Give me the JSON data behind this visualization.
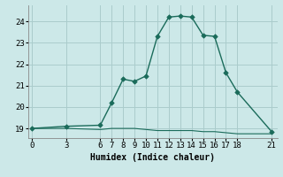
{
  "xlabel": "Humidex (Indice chaleur)",
  "background_color": "#cce8e8",
  "grid_color": "#aacccc",
  "line_color": "#1a6b5a",
  "marker_color": "#1a6b5a",
  "line_x": [
    0,
    3,
    6,
    7,
    8,
    9,
    10,
    11,
    12,
    13,
    14,
    15,
    16,
    17,
    18,
    21
  ],
  "line_y": [
    19.0,
    19.1,
    19.15,
    20.2,
    21.3,
    21.2,
    21.45,
    23.3,
    24.2,
    24.25,
    24.2,
    23.35,
    23.3,
    21.6,
    20.7,
    18.85
  ],
  "flat_x": [
    0,
    3,
    6,
    7,
    8,
    9,
    10,
    11,
    12,
    13,
    14,
    15,
    16,
    17,
    18,
    21
  ],
  "flat_y": [
    19.0,
    19.0,
    18.95,
    19.0,
    19.0,
    19.0,
    18.95,
    18.9,
    18.9,
    18.9,
    18.9,
    18.85,
    18.85,
    18.8,
    18.75,
    18.75
  ],
  "xticks": [
    0,
    3,
    6,
    7,
    8,
    9,
    10,
    11,
    12,
    13,
    14,
    15,
    16,
    17,
    18,
    21
  ],
  "yticks": [
    19,
    20,
    21,
    22,
    23,
    24
  ],
  "xlim": [
    -0.3,
    21.5
  ],
  "ylim": [
    18.55,
    24.75
  ]
}
